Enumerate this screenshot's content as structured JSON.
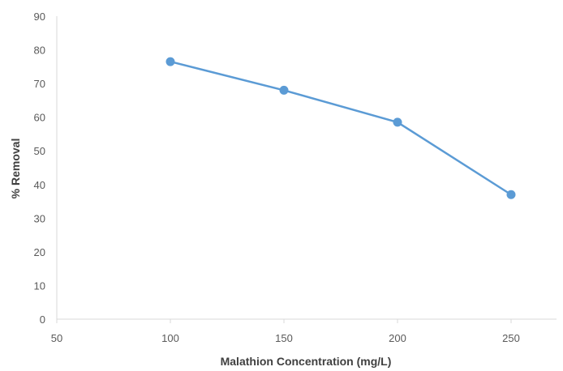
{
  "chart_data": {
    "type": "line",
    "title": "",
    "xlabel": "Malathion Concentration (mg/L)",
    "ylabel": "% Removal",
    "xlim": [
      50,
      270
    ],
    "ylim": [
      0,
      90
    ],
    "x_ticks": [
      "50",
      "100",
      "150",
      "200",
      "250"
    ],
    "y_ticks": [
      "0",
      "10",
      "20",
      "30",
      "40",
      "50",
      "60",
      "70",
      "80",
      "90"
    ],
    "grid": false,
    "legend": "none",
    "series": [
      {
        "color": "#5B9BD5",
        "x": [
          100,
          150,
          200,
          250
        ],
        "y": [
          76.5,
          68,
          58.5,
          37
        ]
      }
    ]
  }
}
